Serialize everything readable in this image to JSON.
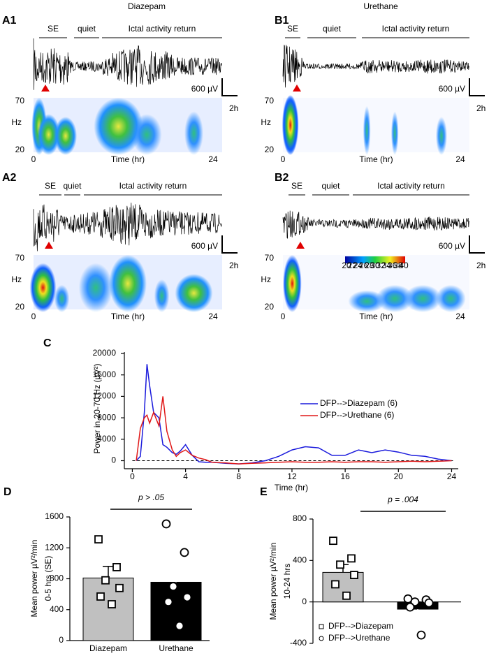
{
  "column_titles": [
    "Diazepam",
    "Urethane"
  ],
  "panels": [
    {
      "label": "A1",
      "phases": [
        "SE",
        "quiet",
        "Ictal activity return"
      ],
      "scale_v": "600 µV",
      "scale_t": "2h",
      "y_top": "70",
      "y_unit": "Hz",
      "y_bottom": "20",
      "x_start": "0",
      "x_label": "Time (hr)",
      "x_end": "24"
    },
    {
      "label": "A2",
      "phases": [
        "SE",
        "quiet",
        "Ictal activity return"
      ],
      "scale_v": "600 µV",
      "scale_t": "2h",
      "y_top": "70",
      "y_unit": "Hz",
      "y_bottom": "20",
      "x_start": "0",
      "x_label": "Time (hr)",
      "x_end": "24"
    },
    {
      "label": "B1",
      "phases": [
        "SE",
        "quiet",
        "Ictal activity return"
      ],
      "scale_v": "600 µV",
      "scale_t": "2h",
      "y_top": "70",
      "y_unit": "Hz",
      "y_bottom": "20",
      "x_start": "0",
      "x_label": "Time (hr)",
      "x_end": "24"
    },
    {
      "label": "B2",
      "phases": [
        "SE",
        "quiet",
        "Ictal activity return"
      ],
      "scale_v": "600 µV",
      "scale_t": "2h",
      "y_top": "70",
      "y_unit": "Hz",
      "y_bottom": "20",
      "x_start": "0",
      "x_label": "Time (hr)",
      "x_end": "24",
      "colorbar_ticks": [
        20,
        22,
        24,
        26,
        28,
        30,
        32,
        34,
        36,
        38,
        40
      ]
    }
  ],
  "chart_data": [
    {
      "type": "line",
      "panel_label": "C",
      "y_label": "Power in 20-70 Hz (µV²)",
      "x_label": "Time (hr)",
      "x": [
        0.3,
        0.6,
        0.9,
        1.1,
        1.3,
        1.6,
        2,
        2.3,
        2.6,
        3,
        3.3,
        3.6,
        4,
        4.5,
        5,
        5.5,
        6,
        7,
        8,
        9,
        10,
        11,
        12,
        13,
        14,
        15,
        16,
        17,
        18,
        19,
        20,
        21,
        22,
        23,
        24
      ],
      "series": [
        {
          "name": "DFP-->Diazepam (6)",
          "color": "#1a1adc",
          "values": [
            0,
            800,
            9000,
            18000,
            14000,
            9000,
            8000,
            3000,
            2500,
            1500,
            1200,
            1800,
            3000,
            1000,
            -200,
            -300,
            -300,
            -500,
            -600,
            -400,
            0,
            800,
            2000,
            2600,
            2400,
            1000,
            1000,
            2000,
            1500,
            2000,
            1600,
            1000,
            800,
            300,
            0
          ]
        },
        {
          "name": "DFP-->Urethane (6)",
          "color": "#e01818",
          "values": [
            0,
            6000,
            8000,
            8500,
            7000,
            9000,
            6500,
            12000,
            5500,
            2000,
            800,
            1500,
            2000,
            1000,
            500,
            200,
            -300,
            -400,
            -600,
            -500,
            -400,
            -300,
            -200,
            -300,
            -300,
            -200,
            -300,
            -200,
            -200,
            -300,
            -200,
            -100,
            -200,
            -100,
            0
          ]
        }
      ],
      "xlim": [
        -0.6,
        24.5
      ],
      "xticks": [
        0,
        4,
        8,
        12,
        16,
        20,
        24
      ],
      "ylim": [
        -1500,
        20000
      ],
      "yticks": [
        0,
        4000,
        8000,
        12000,
        16000,
        20000
      ],
      "legend": "right"
    },
    {
      "type": "bar",
      "panel_label": "D",
      "y_label": [
        "Mean power µV²/min",
        "0-5 hrs (SE)"
      ],
      "annotation": "p > .05",
      "categories": [
        "Diazepam",
        "Urethane"
      ],
      "values": [
        810,
        755
      ],
      "errors": [
        150,
        195
      ],
      "colors": [
        "#c0c0c0",
        "#000000"
      ],
      "points": [
        [
          1310,
          950,
          780,
          680,
          570,
          470
        ],
        [
          1510,
          1140,
          700,
          560,
          500,
          190
        ]
      ],
      "point_markers": [
        "square",
        "circle"
      ],
      "ylim": [
        0,
        1600
      ],
      "yticks": [
        0,
        400,
        800,
        1200,
        1600
      ]
    },
    {
      "type": "bar",
      "panel_label": "E",
      "y_label": [
        "Mean power µV²/min",
        "10-24 hrs"
      ],
      "annotation": "p = .004",
      "legend_names": [
        "DFP-->Diazepam",
        "DFP-->Urethane"
      ],
      "values": [
        285,
        -70
      ],
      "errors": [
        75,
        50
      ],
      "colors": [
        "#c0c0c0",
        "#000000"
      ],
      "points": [
        [
          590,
          420,
          360,
          260,
          170,
          60
        ],
        [
          30,
          20,
          0,
          -10,
          -50,
          -320
        ]
      ],
      "point_markers": [
        "square",
        "circle"
      ],
      "ylim": [
        -400,
        800
      ],
      "yticks": [
        -400,
        0,
        400,
        800
      ]
    }
  ]
}
